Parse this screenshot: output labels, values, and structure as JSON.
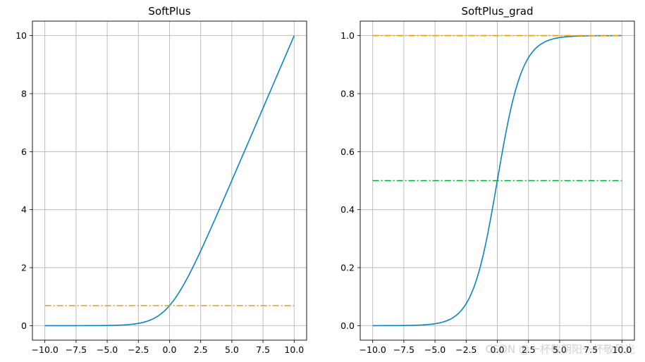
{
  "chart_data": [
    {
      "type": "line",
      "title": "SoftPlus",
      "function": "softplus",
      "xlim": [
        -11,
        11
      ],
      "ylim": [
        -0.5,
        10.5
      ],
      "x_ticks": [
        -10.0,
        -7.5,
        -5.0,
        -2.5,
        0.0,
        2.5,
        5.0,
        7.5,
        10.0
      ],
      "x_tick_labels": [
        "−10.0",
        "−7.5",
        "−5.0",
        "−2.5",
        "0.0",
        "2.5",
        "5.0",
        "7.5",
        "10.0"
      ],
      "y_ticks": [
        0,
        2,
        4,
        6,
        8,
        10
      ],
      "y_tick_labels": [
        "0",
        "2",
        "4",
        "6",
        "8",
        "10"
      ],
      "grid": true,
      "series": [
        {
          "color": "#0a84c0",
          "style": "solid",
          "x_range": [
            -10,
            10
          ],
          "x": [
            -10,
            -7.5,
            -5,
            -2.5,
            0,
            2.5,
            5,
            7.5,
            10
          ],
          "y": [
            0.0,
            0.001,
            0.007,
            0.079,
            0.693,
            2.579,
            5.007,
            7.501,
            10.0
          ]
        },
        {
          "color": "#f59b00",
          "style": "dashdot",
          "x_range": [
            -10,
            10
          ],
          "y_const": 0.693
        }
      ]
    },
    {
      "type": "line",
      "title": "SoftPlus_grad",
      "function": "sigmoid",
      "xlim": [
        -11,
        11
      ],
      "ylim": [
        -0.05,
        1.05
      ],
      "x_ticks": [
        -10.0,
        -7.5,
        -5.0,
        -2.5,
        0.0,
        2.5,
        5.0,
        7.5,
        10.0
      ],
      "x_tick_labels": [
        "−10.0",
        "−7.5",
        "−5.0",
        "−2.5",
        "0.0",
        "2.5",
        "5.0",
        "7.5",
        "10.0"
      ],
      "y_ticks": [
        0.0,
        0.2,
        0.4,
        0.6,
        0.8,
        1.0
      ],
      "y_tick_labels": [
        "0.0",
        "0.2",
        "0.4",
        "0.6",
        "0.8",
        "1.0"
      ],
      "grid": true,
      "series": [
        {
          "color": "#0a84c0",
          "style": "solid",
          "x_range": [
            -10,
            10
          ],
          "x": [
            -10,
            -7.5,
            -5,
            -2.5,
            0,
            2.5,
            5,
            7.5,
            10
          ],
          "y": [
            0.0,
            0.001,
            0.007,
            0.076,
            0.5,
            0.924,
            0.993,
            0.999,
            1.0
          ]
        },
        {
          "color": "#f59b00",
          "style": "dashdot",
          "x_range": [
            -10,
            10
          ],
          "y_const": 1.0
        },
        {
          "color": "#00a82d",
          "style": "dashdot",
          "x_range": [
            -10,
            10
          ],
          "y_const": 0.5
        }
      ]
    }
  ],
  "watermark": "CSDN @一杯敬朝阳一杯敬月光"
}
